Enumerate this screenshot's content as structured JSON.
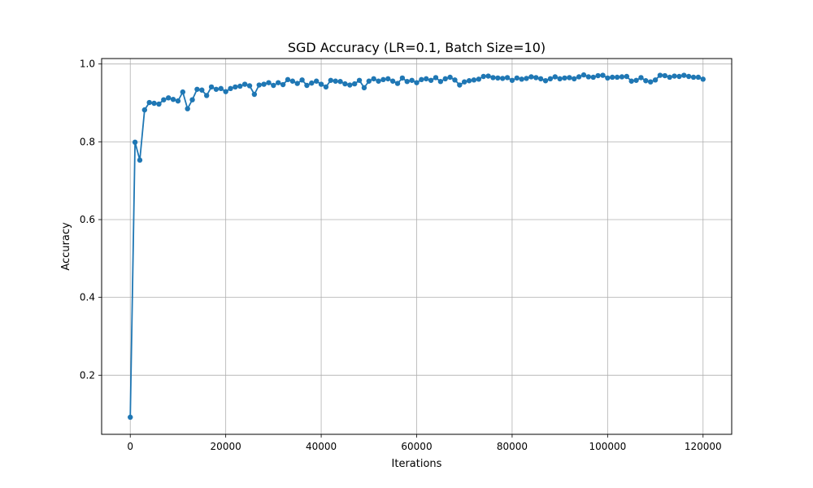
{
  "chart_data": {
    "type": "line",
    "title": "SGD Accuracy (LR=0.1, Batch Size=10)",
    "xlabel": "Iterations",
    "ylabel": "Accuracy",
    "xlim": [
      -6000,
      126000
    ],
    "ylim": [
      0.048,
      1.014
    ],
    "xticks": [
      0,
      20000,
      40000,
      60000,
      80000,
      100000,
      120000
    ],
    "xtick_labels": [
      "0",
      "20000",
      "40000",
      "60000",
      "80000",
      "100000",
      "120000"
    ],
    "yticks": [
      0.2,
      0.4,
      0.6,
      0.8,
      1.0
    ],
    "ytick_labels": [
      "0.2",
      "0.4",
      "0.6",
      "0.8",
      "1.0"
    ],
    "grid": true,
    "legend": false,
    "colors": {
      "series": "#1f77b4",
      "grid": "#b0b0b0",
      "axis": "#000000"
    },
    "series": [
      {
        "x": [
          0,
          1000,
          2000,
          3000,
          4000,
          5000,
          6000,
          7000,
          8000,
          9000,
          10000,
          11000,
          12000,
          13000,
          14000,
          15000,
          16000,
          17000,
          18000,
          19000,
          20000,
          21000,
          22000,
          23000,
          24000,
          25000,
          26000,
          27000,
          28000,
          29000,
          30000,
          31000,
          32000,
          33000,
          34000,
          35000,
          36000,
          37000,
          38000,
          39000,
          40000,
          41000,
          42000,
          43000,
          44000,
          45000,
          46000,
          47000,
          48000,
          49000,
          50000,
          51000,
          52000,
          53000,
          54000,
          55000,
          56000,
          57000,
          58000,
          59000,
          60000,
          61000,
          62000,
          63000,
          64000,
          65000,
          66000,
          67000,
          68000,
          69000,
          70000,
          71000,
          72000,
          73000,
          74000,
          75000,
          76000,
          77000,
          78000,
          79000,
          80000,
          81000,
          82000,
          83000,
          84000,
          85000,
          86000,
          87000,
          88000,
          89000,
          90000,
          91000,
          92000,
          93000,
          94000,
          95000,
          96000,
          97000,
          98000,
          99000,
          100000,
          101000,
          102000,
          103000,
          104000,
          105000,
          106000,
          107000,
          108000,
          109000,
          110000,
          111000,
          112000,
          113000,
          114000,
          115000,
          116000,
          117000,
          118000,
          119000,
          120000
        ],
        "values": [
          0.092,
          0.799,
          0.753,
          0.882,
          0.901,
          0.899,
          0.897,
          0.908,
          0.913,
          0.909,
          0.905,
          0.928,
          0.885,
          0.908,
          0.935,
          0.933,
          0.919,
          0.941,
          0.935,
          0.937,
          0.929,
          0.937,
          0.941,
          0.943,
          0.948,
          0.944,
          0.922,
          0.946,
          0.948,
          0.952,
          0.945,
          0.952,
          0.947,
          0.96,
          0.956,
          0.95,
          0.959,
          0.945,
          0.951,
          0.956,
          0.948,
          0.941,
          0.958,
          0.956,
          0.955,
          0.949,
          0.946,
          0.949,
          0.958,
          0.939,
          0.956,
          0.962,
          0.956,
          0.96,
          0.962,
          0.956,
          0.95,
          0.964,
          0.955,
          0.958,
          0.952,
          0.96,
          0.962,
          0.958,
          0.965,
          0.955,
          0.962,
          0.966,
          0.959,
          0.946,
          0.954,
          0.957,
          0.959,
          0.961,
          0.968,
          0.969,
          0.965,
          0.964,
          0.963,
          0.965,
          0.958,
          0.964,
          0.961,
          0.963,
          0.967,
          0.965,
          0.962,
          0.957,
          0.962,
          0.967,
          0.962,
          0.964,
          0.965,
          0.962,
          0.967,
          0.972,
          0.967,
          0.966,
          0.97,
          0.971,
          0.964,
          0.966,
          0.966,
          0.967,
          0.968,
          0.956,
          0.958,
          0.965,
          0.957,
          0.954,
          0.959,
          0.971,
          0.97,
          0.966,
          0.969,
          0.968,
          0.971,
          0.968,
          0.966,
          0.966,
          0.961
        ]
      }
    ]
  }
}
